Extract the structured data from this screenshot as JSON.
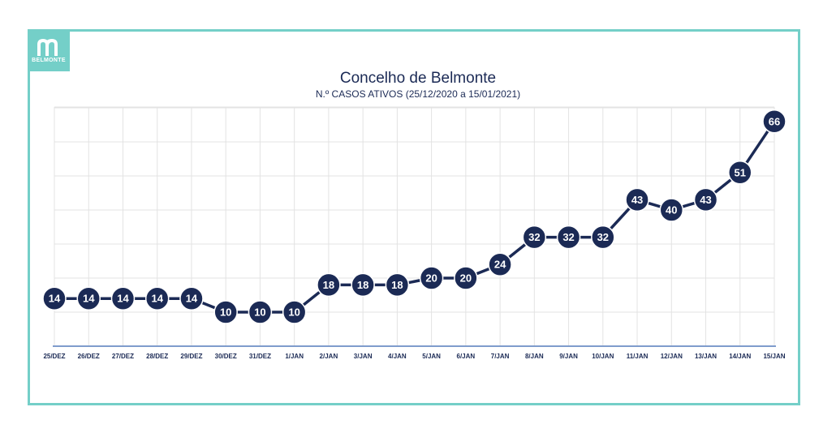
{
  "brand": {
    "logo_text": "BELMONTE",
    "accent_color": "#74cfc8"
  },
  "chart_data": {
    "type": "line",
    "title": "Concelho de Belmonte",
    "subtitle": "N.º CASOS ATIVOS (25/12/2020 a 15/01/2021)",
    "categories": [
      "25/DEZ",
      "26/DEZ",
      "27/DEZ",
      "28/DEZ",
      "29/DEZ",
      "30/DEZ",
      "31/DEZ",
      "1/JAN",
      "2/JAN",
      "3/JAN",
      "4/JAN",
      "5/JAN",
      "6/JAN",
      "7/JAN",
      "8/JAN",
      "9/JAN",
      "10/JAN",
      "11/JAN",
      "12/JAN",
      "13/JAN",
      "14/JAN",
      "15/JAN"
    ],
    "values": [
      14,
      14,
      14,
      14,
      14,
      10,
      10,
      10,
      18,
      18,
      18,
      20,
      20,
      24,
      32,
      32,
      32,
      43,
      40,
      43,
      51,
      66
    ],
    "ylim": [
      0,
      70
    ],
    "grid": true,
    "data_labels": true,
    "line_color": "#1b2a55",
    "axis_color": "#7f9ccc"
  }
}
